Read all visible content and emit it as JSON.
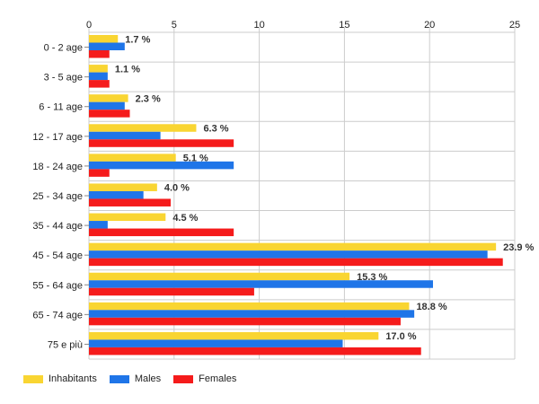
{
  "chart_data": {
    "type": "bar",
    "orientation": "horizontal",
    "categories": [
      "0 - 2 age",
      "3 - 5 age",
      "6 - 11 age",
      "12 - 17 age",
      "18 - 24 age",
      "25 - 34 age",
      "35 - 44 age",
      "45 - 54 age",
      "55 - 64 age",
      "65 - 74 age",
      "75 e più"
    ],
    "series": [
      {
        "name": "Inhabitants",
        "color": "#f9d532",
        "values": [
          1.7,
          1.1,
          2.3,
          6.3,
          5.1,
          4.0,
          4.5,
          23.9,
          15.3,
          18.8,
          17.0
        ]
      },
      {
        "name": "Males",
        "color": "#1f75e8",
        "values": [
          2.1,
          1.1,
          2.1,
          4.2,
          8.5,
          3.2,
          1.1,
          23.4,
          20.2,
          19.1,
          14.9
        ]
      },
      {
        "name": "Females",
        "color": "#f51b1b",
        "values": [
          1.2,
          1.2,
          2.4,
          8.5,
          1.2,
          4.8,
          8.5,
          24.3,
          9.7,
          18.3,
          19.5
        ]
      }
    ],
    "data_labels": [
      "1.7 %",
      "1.1 %",
      "2.3 %",
      "6.3 %",
      "5.1 %",
      "4.0 %",
      "4.5 %",
      "23.9 %",
      "15.3 %",
      "18.8 %",
      "17.0 %"
    ],
    "xticks": [
      "0",
      "5",
      "10",
      "15",
      "20",
      "25"
    ],
    "xlim": [
      0,
      25
    ],
    "grid": true,
    "legend_position": "bottom-left"
  }
}
